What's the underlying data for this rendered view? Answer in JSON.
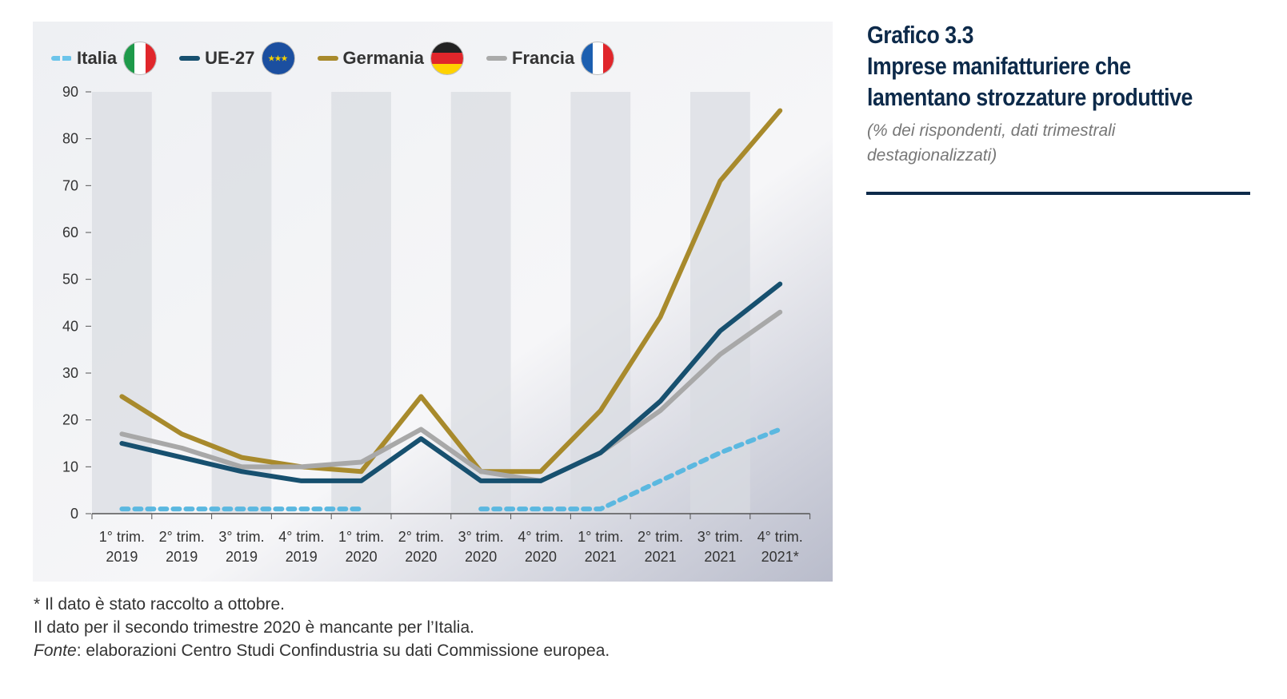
{
  "title": [
    "Grafico 3.3",
    "Imprese manifatturiere che",
    "lamentano strozzature produttive"
  ],
  "subtitle": "(% dei rispondenti, dati trimestrali destagionalizzati)",
  "notes": {
    "n1": "* Il dato è stato raccolto a ottobre.",
    "n2": "Il dato per il secondo trimestre 2020 è mancante per l’Italia.",
    "fonte_label": "Fonte",
    "fonte_text": ": elaborazioni Centro Studi Confindustria su dati Commissione europea."
  },
  "chart_data": {
    "type": "line",
    "categories": [
      [
        "1° trim.",
        "2019"
      ],
      [
        "2° trim.",
        "2019"
      ],
      [
        "3° trim.",
        "2019"
      ],
      [
        "4° trim.",
        "2019"
      ],
      [
        "1° trim.",
        "2020"
      ],
      [
        "2° trim.",
        "2020"
      ],
      [
        "3° trim.",
        "2020"
      ],
      [
        "4° trim.",
        "2020"
      ],
      [
        "1° trim.",
        "2021"
      ],
      [
        "2° trim.",
        "2021"
      ],
      [
        "3° trim.",
        "2021"
      ],
      [
        "4° trim.",
        "2021*"
      ]
    ],
    "ylim": [
      0,
      90
    ],
    "yticks": [
      0,
      10,
      20,
      30,
      40,
      50,
      60,
      70,
      80,
      90
    ],
    "legend_position": "top-left",
    "series": [
      {
        "name": "Germania",
        "color": "#a88a2c",
        "dashed": false,
        "values": [
          25,
          17,
          12,
          10,
          9,
          25,
          9,
          9,
          22,
          42,
          71,
          86
        ]
      },
      {
        "name": "Francia",
        "color": "#a8a8a8",
        "dashed": false,
        "values": [
          17,
          14,
          10,
          10,
          11,
          18,
          9,
          7,
          13,
          22,
          34,
          43
        ]
      },
      {
        "name": "UE-27",
        "color": "#17506f",
        "dashed": false,
        "values": [
          15,
          12,
          9,
          7,
          7,
          16,
          7,
          7,
          13,
          24,
          39,
          49
        ]
      },
      {
        "name": "Italia",
        "color": "#5bb8e0",
        "dashed": true,
        "values": [
          1,
          1,
          1,
          1,
          1,
          null,
          1,
          1,
          1,
          7,
          13,
          18
        ]
      }
    ],
    "legend": [
      {
        "name": "Italia",
        "color": "#6cc4ea",
        "dashed": true
      },
      {
        "name": "UE-27",
        "color": "#17506f"
      },
      {
        "name": "Germania",
        "color": "#a88a2c"
      },
      {
        "name": "Francia",
        "color": "#aaaaaa"
      }
    ]
  }
}
